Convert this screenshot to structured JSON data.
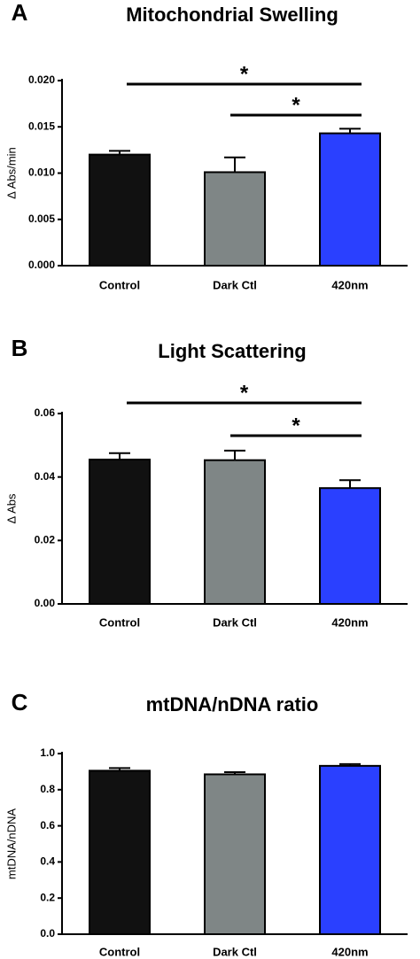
{
  "chart_data": [
    {
      "type": "bar",
      "panel": "A",
      "title": "Mitochondrial Swelling",
      "y_label": "Δ Abs/min",
      "categories": [
        "Control",
        "Dark Ctl",
        "420nm"
      ],
      "values": [
        0.012,
        0.0101,
        0.0143
      ],
      "errors": [
        0.0004,
        0.0016,
        0.0005
      ],
      "colors": [
        "#111111",
        "#7f8686",
        "#2a40ff"
      ],
      "ylim": [
        0,
        0.02
      ],
      "yticks": [
        {
          "value": 0,
          "label": "0.000"
        },
        {
          "value": 0.005,
          "label": "0.005"
        },
        {
          "value": 0.01,
          "label": "0.010"
        },
        {
          "value": 0.015,
          "label": "0.015"
        },
        {
          "value": 0.02,
          "label": "0.020"
        }
      ],
      "annotations": [
        {
          "text": "*",
          "from": 0,
          "to": 2
        },
        {
          "text": "*",
          "from": 1,
          "to": 2
        }
      ]
    },
    {
      "type": "bar",
      "panel": "B",
      "title": "Light Scattering",
      "y_label": "Δ Abs",
      "categories": [
        "Control",
        "Dark Ctl",
        "420nm"
      ],
      "values": [
        0.0455,
        0.0453,
        0.0365
      ],
      "errors": [
        0.002,
        0.003,
        0.0025
      ],
      "colors": [
        "#111111",
        "#7f8686",
        "#2a40ff"
      ],
      "ylim": [
        0,
        0.06
      ],
      "yticks": [
        {
          "value": 0,
          "label": "0.00"
        },
        {
          "value": 0.02,
          "label": "0.02"
        },
        {
          "value": 0.04,
          "label": "0.04"
        },
        {
          "value": 0.06,
          "label": "0.06"
        }
      ],
      "annotations": [
        {
          "text": "*",
          "from": 0,
          "to": 2
        },
        {
          "text": "*",
          "from": 1,
          "to": 2
        }
      ]
    },
    {
      "type": "bar",
      "panel": "C",
      "title": "mtDNA/nDNA ratio",
      "y_label": "mtDNA/nDNA",
      "categories": [
        "Control",
        "Dark Ctl",
        "420nm"
      ],
      "values": [
        0.905,
        0.885,
        0.932
      ],
      "errors": [
        0.015,
        0.012,
        0.01
      ],
      "colors": [
        "#111111",
        "#7f8686",
        "#2a40ff"
      ],
      "ylim": [
        0,
        1
      ],
      "yticks": [
        {
          "value": 0,
          "label": "0.0"
        },
        {
          "value": 0.2,
          "label": "0.2"
        },
        {
          "value": 0.4,
          "label": "0.4"
        },
        {
          "value": 0.6,
          "label": "0.6"
        },
        {
          "value": 0.8,
          "label": "0.8"
        },
        {
          "value": 1,
          "label": "1.0"
        }
      ],
      "annotations": []
    }
  ]
}
